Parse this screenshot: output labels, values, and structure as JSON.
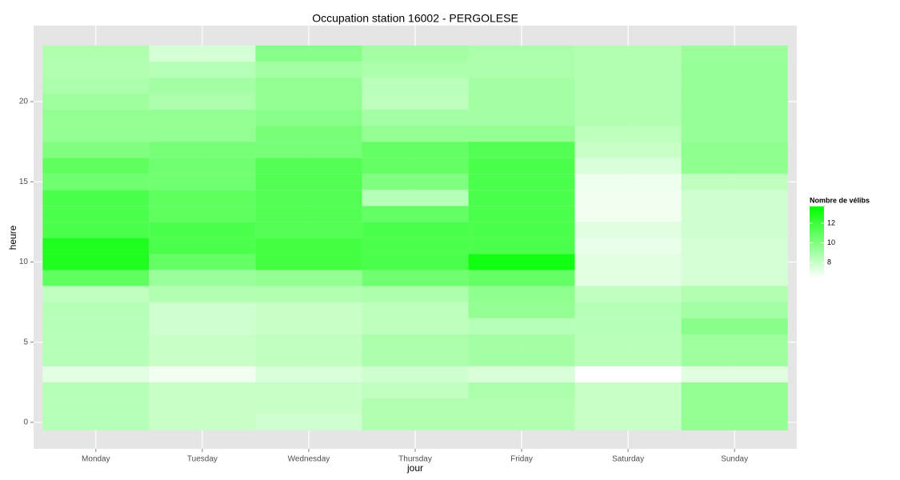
{
  "chart_data": {
    "type": "heatmap",
    "title": "Occupation station 16002 - PERGOLESE",
    "x_label": "jour",
    "y_label": "heure",
    "legend_title": "Nombre de vélibs",
    "categories": [
      "Monday",
      "Tuesday",
      "Wednesday",
      "Thursday",
      "Friday",
      "Saturday",
      "Sunday"
    ],
    "y": [
      0,
      1,
      2,
      3,
      4,
      5,
      6,
      7,
      8,
      9,
      10,
      11,
      12,
      13,
      14,
      15,
      16,
      17,
      18,
      19,
      20,
      21,
      22,
      23
    ],
    "values": [
      [
        8.5,
        8.5,
        8.5,
        7.2,
        8.5,
        8.5,
        8.5,
        8.5,
        8.2,
        11,
        12.8,
        12.8,
        11.5,
        11.5,
        11.5,
        10.5,
        11,
        10,
        9.5,
        9.5,
        9.2,
        8.8,
        8.6,
        8.7
      ],
      [
        8,
        8,
        8,
        6.8,
        8,
        8,
        7.8,
        7.8,
        8.6,
        9.3,
        10.8,
        11.5,
        11.5,
        11,
        11,
        10.5,
        10.5,
        10.3,
        9.5,
        9.5,
        8.8,
        9,
        8.5,
        7.6
      ],
      [
        7.8,
        8,
        8,
        7.5,
        8.2,
        8.2,
        8,
        8,
        8.6,
        9.5,
        11.8,
        11.8,
        11.3,
        11.3,
        11.3,
        11.3,
        11.3,
        10.3,
        10.3,
        9.8,
        9.5,
        9.5,
        9,
        9.8
      ],
      [
        8.6,
        8.6,
        8.2,
        7.8,
        8.8,
        8.8,
        8.3,
        8.3,
        8.8,
        10.5,
        11.5,
        11.5,
        11.5,
        10.8,
        8.5,
        10,
        10.8,
        10.8,
        9.5,
        9,
        8.3,
        8.4,
        8.8,
        9
      ],
      [
        8.6,
        8.6,
        8.8,
        7.5,
        9,
        9,
        8.5,
        9.5,
        9.6,
        10.8,
        13.2,
        11.5,
        11.5,
        11.5,
        11.5,
        11.5,
        11.5,
        11.3,
        9.5,
        9,
        9,
        9,
        8.8,
        8.8
      ],
      [
        8,
        8,
        8,
        6.4,
        8.4,
        8.4,
        8.5,
        8.5,
        8.2,
        7.2,
        7.2,
        7,
        7.3,
        6.8,
        6.8,
        6.9,
        7.5,
        8,
        8.3,
        8.6,
        8.6,
        8.6,
        8.6,
        8.6
      ],
      [
        9.5,
        9.5,
        9.5,
        7.3,
        9.2,
        9.2,
        9.8,
        9,
        8.6,
        7.6,
        7.6,
        7.6,
        7.8,
        7.8,
        7.8,
        8.2,
        9.6,
        9.6,
        9.4,
        9.4,
        9.4,
        9.4,
        9.4,
        9.3
      ]
    ],
    "ylim": [
      -1.65,
      24.74
    ],
    "yticks": [
      0,
      5,
      10,
      15,
      20
    ],
    "zlim": [
      6.4,
      13.7
    ],
    "zticks": [
      8,
      10,
      12
    ],
    "color_low": "#ffffff",
    "color_high": "#00ff00",
    "grid": true
  }
}
